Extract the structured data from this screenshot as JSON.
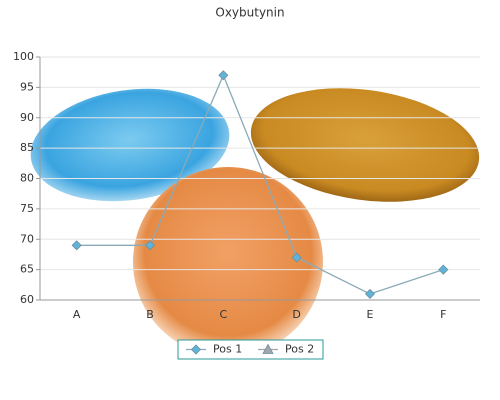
{
  "chart_data": {
    "type": "line",
    "title": "Oxybutynin",
    "categories": [
      "A",
      "B",
      "C",
      "D",
      "E",
      "F"
    ],
    "series": [
      {
        "name": "Pos 1",
        "color": "#5fb3d6",
        "line_color": "#8aaab8",
        "marker": "diamond",
        "values": [
          69,
          69,
          97,
          67,
          61,
          65
        ]
      },
      {
        "name": "Pos 2",
        "color": "#a0a8ae",
        "line_color": "#a0a8ae",
        "marker": "triangle",
        "values": [
          null,
          null,
          null,
          null,
          null,
          null
        ]
      }
    ],
    "ylim": [
      60,
      100
    ],
    "yticks": [
      60,
      65,
      70,
      75,
      80,
      85,
      90,
      95,
      100
    ],
    "grid": true,
    "legend": "bottom"
  }
}
